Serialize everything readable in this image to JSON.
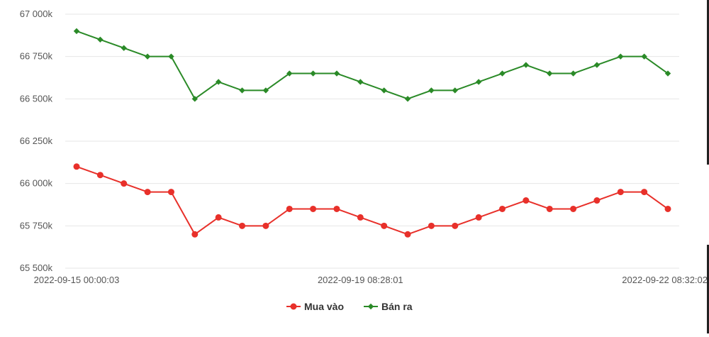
{
  "chart_data": {
    "type": "line",
    "title": "",
    "xlabel": "",
    "ylabel": "",
    "ylim": [
      65500,
      67000
    ],
    "yticks": [
      {
        "value": 65500,
        "label": "65 500k"
      },
      {
        "value": 65750,
        "label": "65 750k"
      },
      {
        "value": 66000,
        "label": "66 000k"
      },
      {
        "value": 66250,
        "label": "66 250k"
      },
      {
        "value": 66500,
        "label": "66 500k"
      },
      {
        "value": 66750,
        "label": "66 750k"
      },
      {
        "value": 67000,
        "label": "67 000k"
      }
    ],
    "xticks": [
      {
        "index": 0,
        "label": "2022-09-15 00:00:03"
      },
      {
        "index": 12,
        "label": "2022-09-19 08:28:01"
      },
      {
        "index": 25,
        "label": "2022-09-22 08:32:02"
      }
    ],
    "grid": true,
    "legend_position": "bottom-center",
    "series": [
      {
        "name": "Mua vào",
        "color": "#e8302a",
        "marker": "circle",
        "values": [
          66100,
          66050,
          66000,
          65950,
          65950,
          65700,
          65800,
          65750,
          65750,
          65850,
          65850,
          65850,
          65800,
          65750,
          65700,
          65750,
          65750,
          65800,
          65850,
          65900,
          65850,
          65850,
          65900,
          65950,
          65950,
          65850
        ]
      },
      {
        "name": "Bán ra",
        "color": "#2a8a27",
        "marker": "diamond",
        "values": [
          66900,
          66850,
          66800,
          66750,
          66750,
          66500,
          66600,
          66550,
          66550,
          66650,
          66650,
          66650,
          66600,
          66550,
          66500,
          66550,
          66550,
          66600,
          66650,
          66700,
          66650,
          66650,
          66700,
          66750,
          66750,
          66650
        ]
      }
    ]
  }
}
